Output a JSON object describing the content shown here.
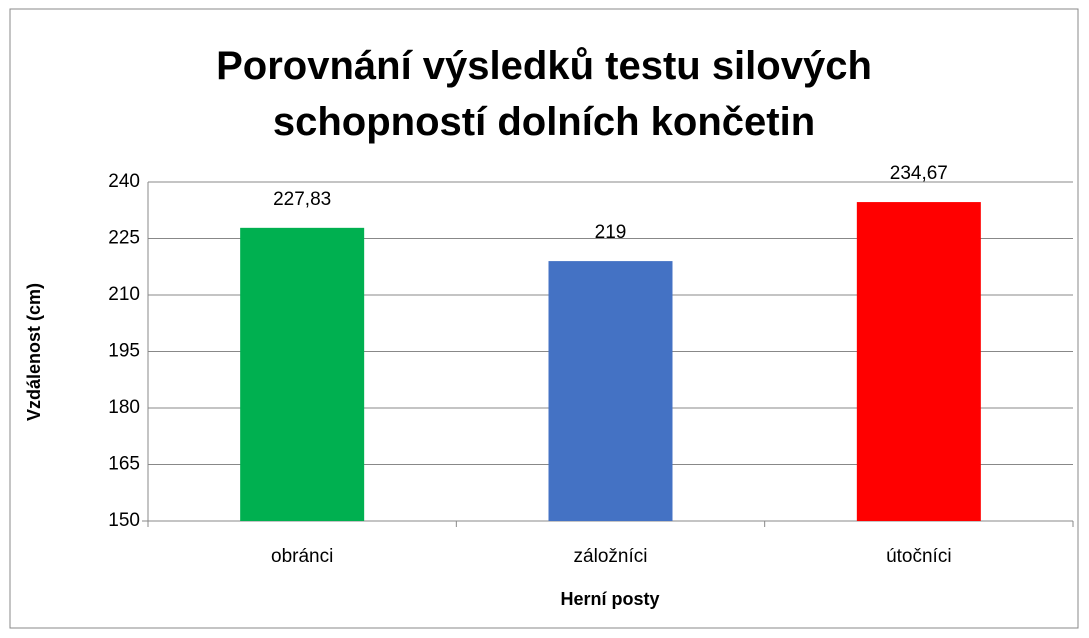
{
  "chart_data": {
    "type": "bar",
    "title": "Porovnání výsledků testu silových schopností dolních končetin",
    "x_label": "Herní posty",
    "y_label": "Vzdálenost (cm)",
    "categories": [
      "obránci",
      "záložníci",
      "útočníci"
    ],
    "values": [
      227.83,
      219,
      234.67
    ],
    "value_labels": [
      "227,83",
      "219",
      "234,67"
    ],
    "colors": [
      "#00b050",
      "#4472c4",
      "#ff0000"
    ],
    "ylim": [
      150,
      240
    ],
    "yticks": [
      150,
      165,
      180,
      195,
      210,
      225,
      240
    ],
    "grid": true
  }
}
